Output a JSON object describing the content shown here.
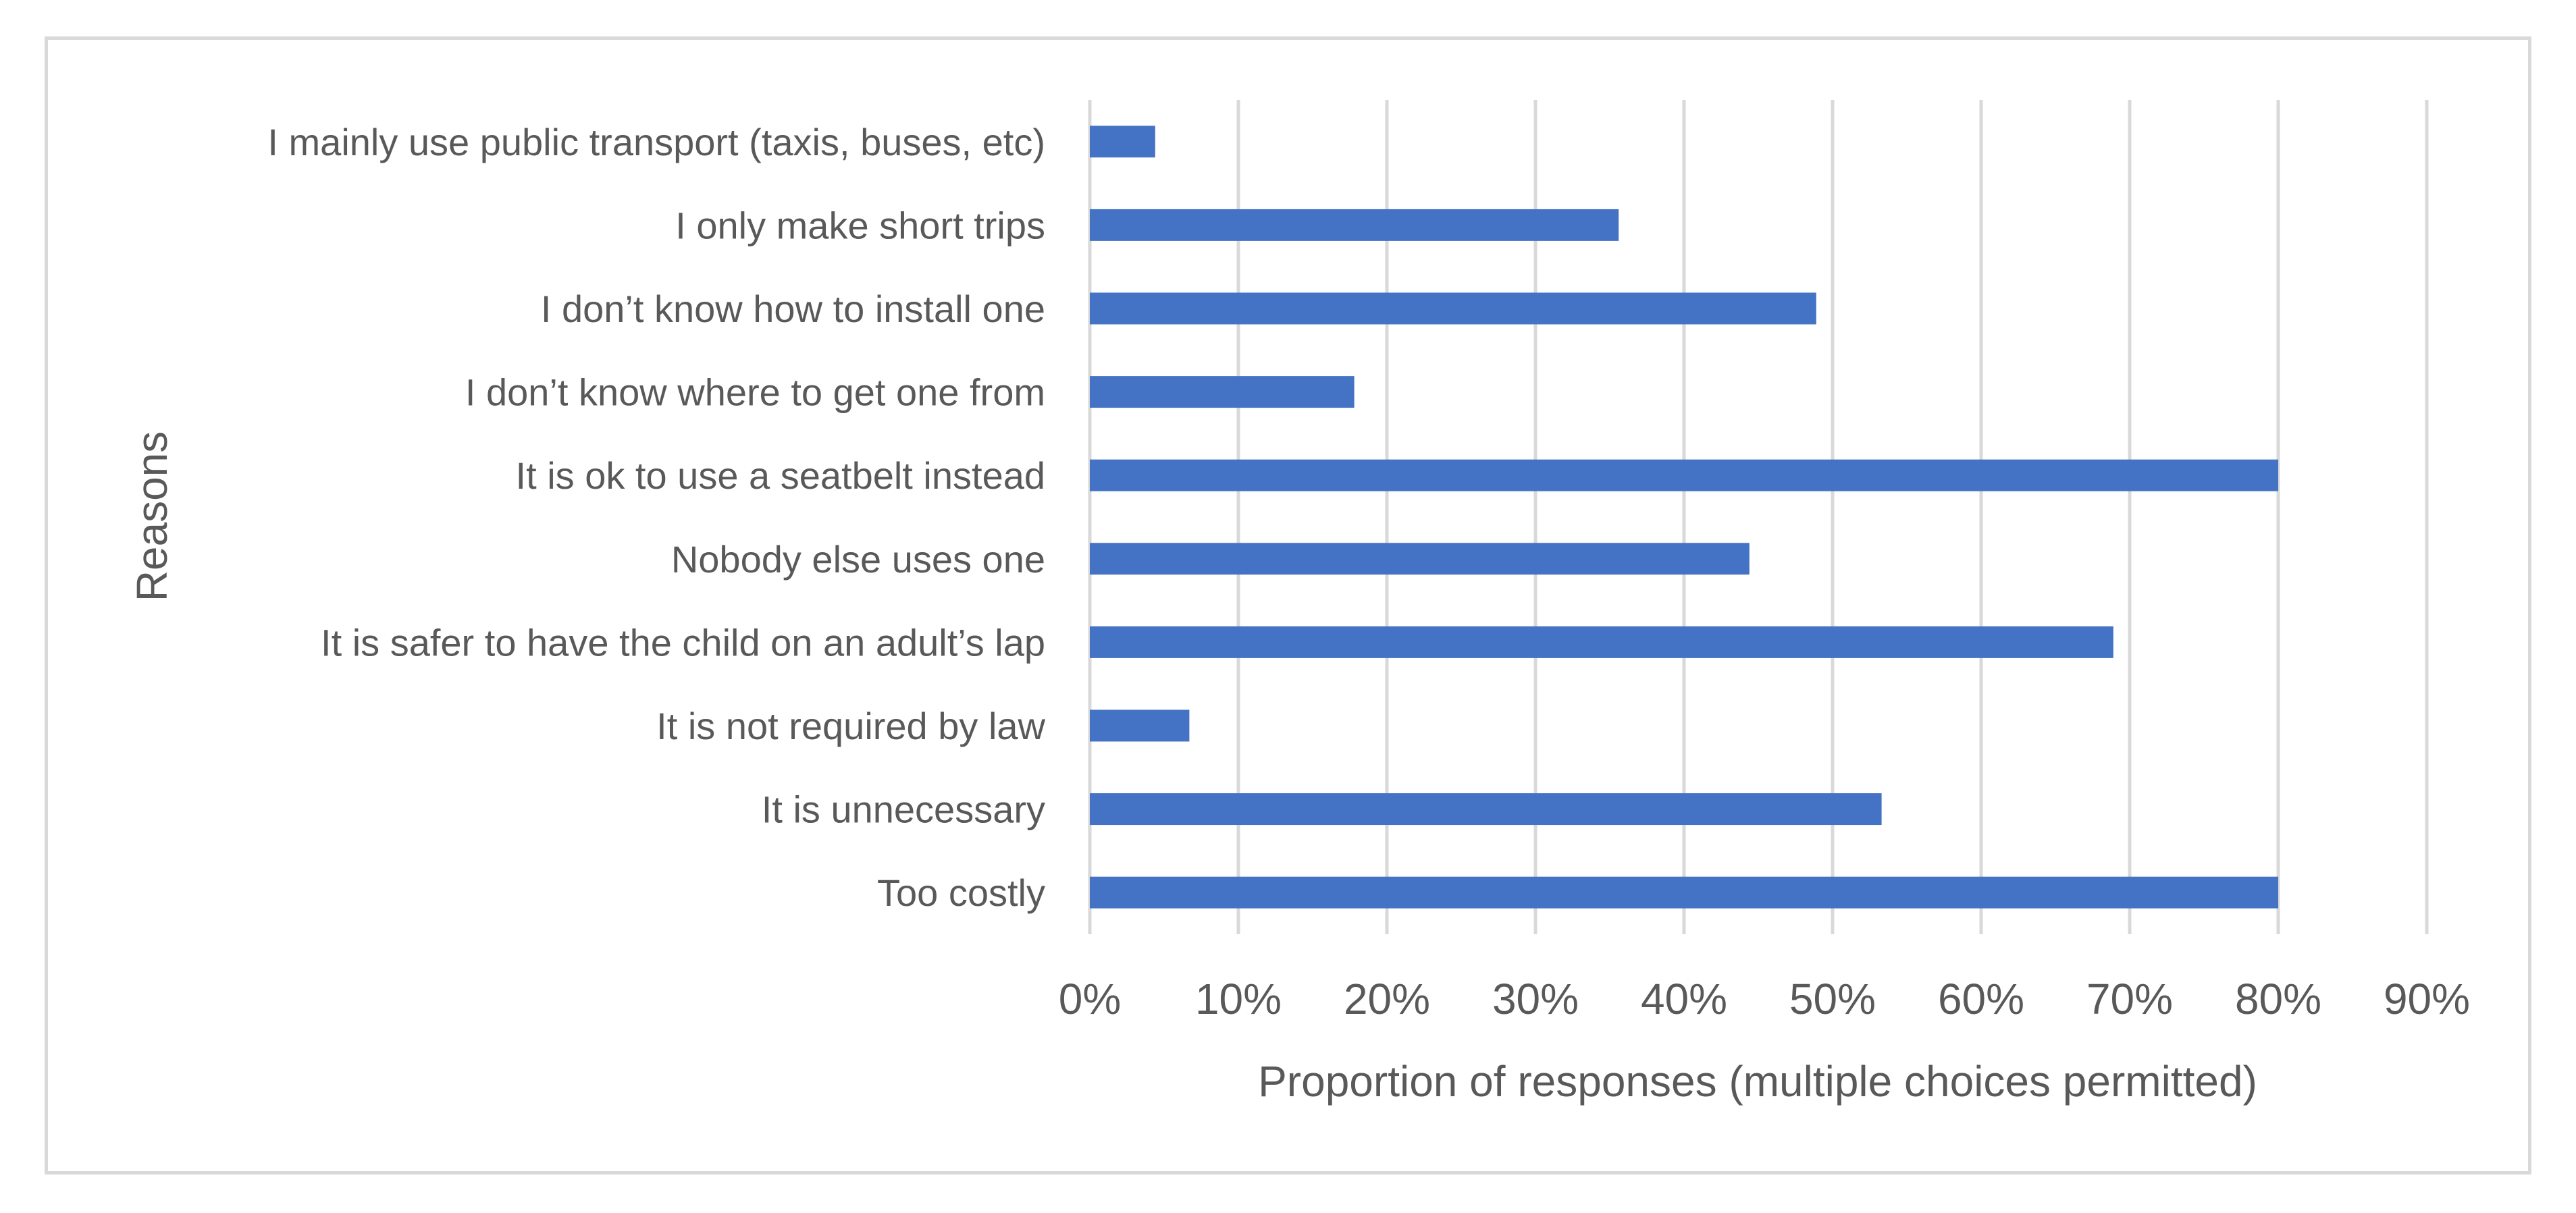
{
  "chart_data": {
    "type": "bar",
    "orientation": "horizontal",
    "title": "",
    "xlabel": "Proportion of responses (multiple choices permitted)",
    "ylabel": "Reasons",
    "categories": [
      "I mainly use public transport (taxis, buses, etc)",
      "I only make short trips",
      "I don’t know how to install one",
      "I don’t know where to get one from",
      "It is ok to use a seatbelt instead",
      "Nobody else uses one",
      "It is safer to have the child on an adult’s lap",
      "It is not required by law",
      "It is unnecessary",
      "Too costly"
    ],
    "series": [
      {
        "values": [
          4.4,
          35.6,
          48.9,
          17.8,
          80.0,
          44.4,
          68.9,
          6.7,
          53.3,
          80.0
        ]
      }
    ],
    "xlim": [
      0,
      90
    ],
    "xticks": [
      0,
      10,
      20,
      30,
      40,
      50,
      60,
      70,
      80,
      90
    ],
    "xtick_labels": [
      "0%",
      "10%",
      "20%",
      "30%",
      "40%",
      "50%",
      "60%",
      "70%",
      "80%",
      "90%"
    ],
    "grid": true,
    "legend": "none",
    "colors": {
      "bar": "#4472c4",
      "grid": "#d9d9d9",
      "text": "#595959",
      "border": "#d9d9d9"
    }
  }
}
